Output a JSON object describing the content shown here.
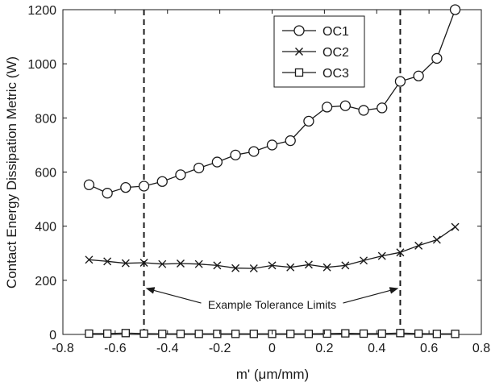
{
  "chart_data": {
    "type": "line",
    "title": "",
    "xlabel": "m' (μm/mm)",
    "ylabel": "Contact Energy Dissipation Metric (W)",
    "xlim": [
      -0.8,
      0.8
    ],
    "ylim": [
      0,
      1200
    ],
    "xticks": [
      -0.8,
      -0.6,
      -0.4,
      -0.2,
      0,
      0.2,
      0.4,
      0.6,
      0.8
    ],
    "xtick_labels": [
      "-0.8",
      "-0.6",
      "-0.4",
      "-0.2",
      "0",
      "0.2",
      "0.4",
      "0.6",
      "0.8"
    ],
    "yticks": [
      0,
      200,
      400,
      600,
      800,
      1000,
      1200
    ],
    "ytick_labels": [
      "0",
      "200",
      "400",
      "600",
      "800",
      "1000",
      "1200"
    ],
    "grid": false,
    "legend_position": "top-right",
    "x": [
      -0.7,
      -0.63,
      -0.56,
      -0.49,
      -0.42,
      -0.35,
      -0.28,
      -0.21,
      -0.14,
      -0.07,
      0.0,
      0.07,
      0.14,
      0.21,
      0.28,
      0.35,
      0.42,
      0.49,
      0.56,
      0.63,
      0.7
    ],
    "series": [
      {
        "name": "OC1",
        "marker": "circle",
        "values": [
          553,
          522,
          543,
          548,
          565,
          590,
          615,
          637,
          663,
          676,
          700,
          716,
          788,
          840,
          845,
          828,
          837,
          935,
          955,
          1020,
          1200
        ]
      },
      {
        "name": "OC2",
        "marker": "x",
        "values": [
          276,
          270,
          263,
          265,
          260,
          262,
          260,
          255,
          245,
          244,
          255,
          248,
          258,
          248,
          255,
          273,
          290,
          303,
          328,
          350,
          397
        ]
      },
      {
        "name": "OC3",
        "marker": "square",
        "values": [
          3,
          3,
          5,
          3,
          2,
          2,
          2,
          2,
          2,
          2,
          2,
          2,
          2,
          3,
          4,
          3,
          3,
          5,
          3,
          2,
          2
        ]
      }
    ],
    "reference_lines": [
      {
        "type": "vertical",
        "x": -0.49,
        "style": "dashed"
      },
      {
        "type": "vertical",
        "x": 0.49,
        "style": "dashed"
      }
    ],
    "annotations": [
      {
        "text": "Example Tolerance Limits",
        "x": 0,
        "y": 110,
        "arrows_to": [
          [
            -0.48,
            170
          ],
          [
            0.48,
            170
          ]
        ]
      }
    ]
  },
  "colors": {
    "line": "#1a1a1a",
    "marker_fill": "#ffffff",
    "background": "#ffffff"
  }
}
